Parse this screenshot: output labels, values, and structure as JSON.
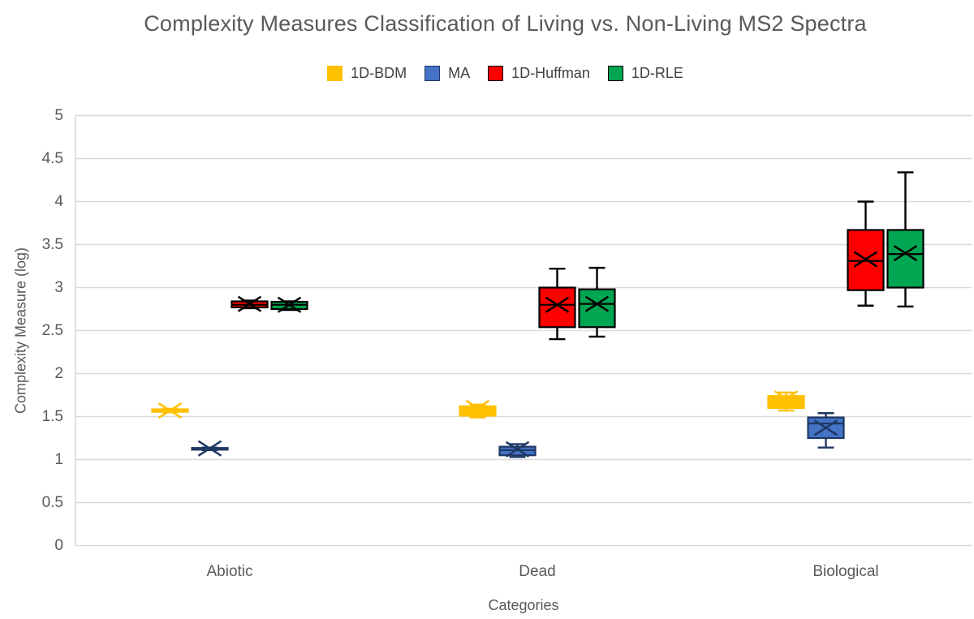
{
  "chart": {
    "title": "Complexity Measures Classification of Living vs. Non-Living MS2 Spectra",
    "x_axis_title": "Categories",
    "y_axis_title": "Complexity Measure (log)"
  },
  "colors": {
    "background": "#FFFFFF",
    "gridline": "#D9D9D9",
    "title_text": "#595959",
    "legend_text": "#404040"
  },
  "chart_data": {
    "type": "box",
    "title": "Complexity Measures Classification of Living vs. Non-Living MS2 Spectra",
    "xlabel": "Categories",
    "ylabel": "Complexity Measure (log)",
    "categories": [
      "Abiotic",
      "Dead",
      "Biological"
    ],
    "ylim": [
      0,
      5
    ],
    "ytick_step": 0.5,
    "grid": true,
    "legend_position": "top",
    "series": [
      {
        "name": "1D-BDM",
        "color": "#FFC000",
        "border": "#FFC000",
        "boxes": [
          {
            "min": 1.55,
            "q1": 1.555,
            "median": 1.57,
            "q3": 1.585,
            "max": 1.59,
            "mean": 1.57
          },
          {
            "min": 1.49,
            "q1": 1.51,
            "median": 1.6,
            "q3": 1.62,
            "max": 1.64,
            "mean": 1.6
          },
          {
            "min": 1.57,
            "q1": 1.6,
            "median": 1.63,
            "q3": 1.74,
            "max": 1.78,
            "mean": 1.71
          }
        ]
      },
      {
        "name": "MA",
        "color": "#4472C4",
        "border": "#1F3864",
        "boxes": [
          {
            "min": 1.11,
            "q1": 1.115,
            "median": 1.125,
            "q3": 1.135,
            "max": 1.14,
            "mean": 1.13
          },
          {
            "min": 1.03,
            "q1": 1.05,
            "median": 1.11,
            "q3": 1.15,
            "max": 1.18,
            "mean": 1.12
          },
          {
            "min": 1.14,
            "q1": 1.25,
            "median": 1.42,
            "q3": 1.49,
            "max": 1.54,
            "mean": 1.37
          }
        ]
      },
      {
        "name": "1D-Huffman",
        "color": "#FF0000",
        "border": "#000000",
        "boxes": [
          {
            "min": 2.76,
            "q1": 2.77,
            "median": 2.8,
            "q3": 2.84,
            "max": 2.85,
            "mean": 2.81
          },
          {
            "min": 2.4,
            "q1": 2.54,
            "median": 2.8,
            "q3": 3.0,
            "max": 3.22,
            "mean": 2.8
          },
          {
            "min": 2.79,
            "q1": 2.97,
            "median": 3.31,
            "q3": 3.67,
            "max": 4.0,
            "mean": 3.33
          }
        ]
      },
      {
        "name": "1D-RLE",
        "color": "#00A651",
        "border": "#000000",
        "boxes": [
          {
            "min": 2.74,
            "q1": 2.75,
            "median": 2.8,
            "q3": 2.835,
            "max": 2.84,
            "mean": 2.8
          },
          {
            "min": 2.43,
            "q1": 2.54,
            "median": 2.81,
            "q3": 2.98,
            "max": 3.23,
            "mean": 2.81
          },
          {
            "min": 2.78,
            "q1": 3.0,
            "median": 3.39,
            "q3": 3.67,
            "max": 4.34,
            "mean": 3.4
          }
        ]
      }
    ]
  }
}
